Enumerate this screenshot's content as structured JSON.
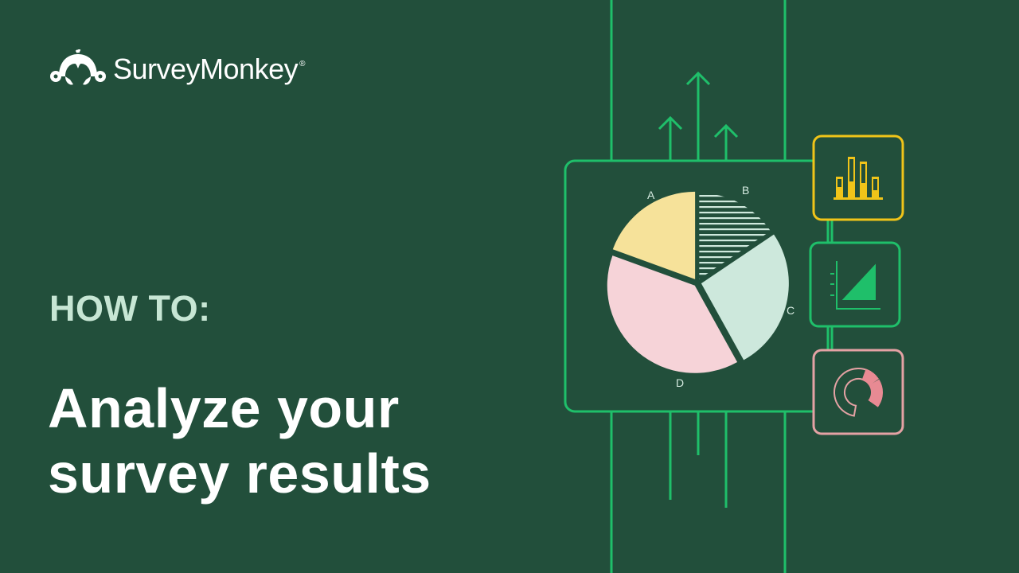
{
  "brand": {
    "name": "SurveyMonkey",
    "registered_mark": "®",
    "logo_icon": "monkey-logo-icon"
  },
  "eyebrow": "HOW TO:",
  "headline": {
    "line1": "Analyze your",
    "line2": "survey results"
  },
  "illustration": {
    "pie_labels": [
      "A",
      "B",
      "C",
      "D"
    ],
    "colors": {
      "background": "#224f3b",
      "line": "#1fbf6a",
      "slice_a": "#f6e29a",
      "slice_b_hatch": "#cfe9dd",
      "slice_c": "#cde8dc",
      "slice_d": "#f6d3d8",
      "bar_icon": "#f0c419",
      "area_icon": "#1fbf6a",
      "donut_icon": "#e88a93",
      "donut_border": "#e4a2a4"
    },
    "icons": [
      "bar-chart-icon",
      "area-chart-icon",
      "donut-chart-icon"
    ]
  }
}
